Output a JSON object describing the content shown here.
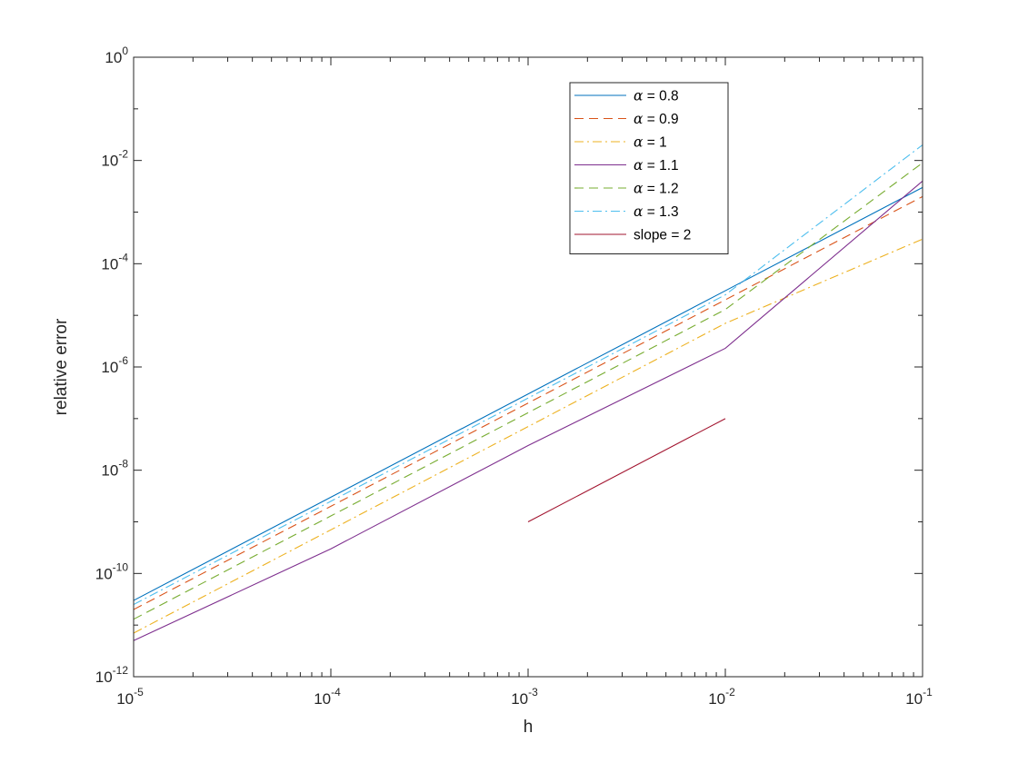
{
  "chart_data": {
    "type": "line",
    "title": "",
    "xlabel": "h",
    "ylabel": "relative error",
    "xscale": "log",
    "yscale": "log",
    "xlim": [
      1e-05,
      0.1
    ],
    "ylim": [
      1e-12,
      1
    ],
    "x_ticks": [
      {
        "base": "10",
        "exp": "-5"
      },
      {
        "base": "10",
        "exp": "-4"
      },
      {
        "base": "10",
        "exp": "-3"
      },
      {
        "base": "10",
        "exp": "-2"
      },
      {
        "base": "10",
        "exp": "-1"
      }
    ],
    "y_ticks": [
      {
        "base": "10",
        "exp": "-12"
      },
      {
        "base": "10",
        "exp": "-10"
      },
      {
        "base": "10",
        "exp": "-8"
      },
      {
        "base": "10",
        "exp": "-6"
      },
      {
        "base": "10",
        "exp": "-4"
      },
      {
        "base": "10",
        "exp": "-2"
      },
      {
        "base": "10",
        "exp": "0"
      }
    ],
    "grid": false,
    "legend_position": "top-right",
    "series": [
      {
        "name": "α = 0.8",
        "symbol": "α",
        "rest": " = 0.8",
        "color": "#0072BD",
        "dash": "solid",
        "x": [
          1e-05,
          0.0001,
          0.001,
          0.01,
          0.1
        ],
        "y": [
          3e-11,
          3e-09,
          3e-07,
          3e-05,
          0.003
        ]
      },
      {
        "name": "α = 0.9",
        "symbol": "α",
        "rest": " = 0.9",
        "color": "#D95319",
        "dash": "dashed",
        "x": [
          1e-05,
          0.0001,
          0.001,
          0.01,
          0.1
        ],
        "y": [
          2e-11,
          2e-09,
          2e-07,
          2e-05,
          0.002
        ]
      },
      {
        "name": "α = 1",
        "symbol": "α",
        "rest": " = 1",
        "color": "#EDB120",
        "dash": "dashdot",
        "x": [
          1e-05,
          0.0001,
          0.001,
          0.01,
          0.1
        ],
        "y": [
          7e-12,
          7e-10,
          7e-08,
          7e-06,
          0.0003
        ]
      },
      {
        "name": "α = 1.1",
        "symbol": "α",
        "rest": " = 1.1",
        "color": "#7E2F8E",
        "dash": "solid",
        "x": [
          1e-05,
          0.0001,
          0.001,
          0.01,
          0.1
        ],
        "y": [
          5e-12,
          3e-10,
          3e-08,
          2.3e-06,
          0.004
        ]
      },
      {
        "name": "α = 1.2",
        "symbol": "α",
        "rest": " = 1.2",
        "color": "#77AC30",
        "dash": "dashed",
        "x": [
          1e-05,
          0.0001,
          0.001,
          0.01,
          0.1
        ],
        "y": [
          1.3e-11,
          1.3e-09,
          1.3e-07,
          1.3e-05,
          0.009
        ]
      },
      {
        "name": "α = 1.3",
        "symbol": "α",
        "rest": " = 1.3",
        "color": "#4DBEEE",
        "dash": "dashdot",
        "x": [
          1e-05,
          0.0001,
          0.001,
          0.01,
          0.1
        ],
        "y": [
          2.5e-11,
          2.5e-09,
          2.5e-07,
          2.5e-05,
          0.02
        ]
      },
      {
        "name": "slope = 2",
        "symbol": "",
        "rest": "slope = 2",
        "color": "#A2142F",
        "dash": "solid",
        "x": [
          0.001,
          0.01
        ],
        "y": [
          1e-09,
          1e-07
        ]
      }
    ]
  }
}
